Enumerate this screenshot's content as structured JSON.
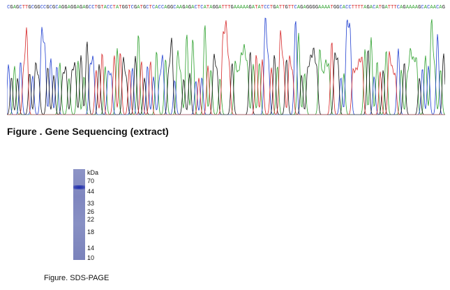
{
  "sequencing": {
    "bases": "CGAGCTTGCGGCCGCGCAGGAGGAGAGCCTGTACCTATGGTCGATGCTCACCAGGCAAGAGACTCATAGGATTTGAAAAAGATATCCTGATTGTTCAGAGGGGAAAATGGCACCTTTTAGACATGATTTCAGAAAAGCACAACAG",
    "caption": "Figure . Gene Sequencing (extract)"
  },
  "gel": {
    "unit": "kDa",
    "markers": [
      "70",
      "44",
      "33",
      "26",
      "22",
      "18",
      "14",
      "10"
    ],
    "band_marker": "44",
    "caption": "Figure. SDS-PAGE"
  },
  "colors": {
    "A": "#2ca02c",
    "C": "#1f3fd0",
    "G": "#111111",
    "T": "#d62728"
  }
}
